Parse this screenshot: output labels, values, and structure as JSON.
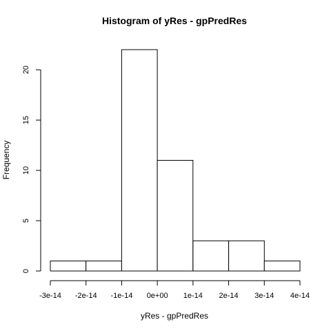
{
  "chart_data": {
    "type": "bar",
    "subtype": "histogram",
    "title": "Histogram of yRes - gpPredRes",
    "xlabel": "yRes - gpPredRes",
    "ylabel": "Frequency",
    "bins": [
      {
        "from": -3e-14,
        "to": -2e-14,
        "count": 1
      },
      {
        "from": -2e-14,
        "to": -1e-14,
        "count": 1
      },
      {
        "from": -1e-14,
        "to": 0,
        "count": 22
      },
      {
        "from": 0,
        "to": 1e-14,
        "count": 11
      },
      {
        "from": 1e-14,
        "to": 2e-14,
        "count": 3
      },
      {
        "from": 2e-14,
        "to": 3e-14,
        "count": 3
      },
      {
        "from": 3e-14,
        "to": 4e-14,
        "count": 1
      }
    ],
    "xlim": [
      -3e-14,
      4e-14
    ],
    "ylim": [
      0,
      22
    ],
    "x_ticks": [
      {
        "value": -3e-14,
        "label": "-3e-14"
      },
      {
        "value": -2e-14,
        "label": "-2e-14"
      },
      {
        "value": -1e-14,
        "label": "-1e-14"
      },
      {
        "value": 0,
        "label": "0e+00"
      },
      {
        "value": 1e-14,
        "label": "1e-14"
      },
      {
        "value": 2e-14,
        "label": "2e-14"
      },
      {
        "value": 3e-14,
        "label": "3e-14"
      },
      {
        "value": 4e-14,
        "label": "4e-14"
      }
    ],
    "y_ticks": [
      {
        "value": 0,
        "label": "0"
      },
      {
        "value": 5,
        "label": "5"
      },
      {
        "value": 10,
        "label": "10"
      },
      {
        "value": 15,
        "label": "15"
      },
      {
        "value": 20,
        "label": "20"
      }
    ],
    "grid": false,
    "legend": "none"
  }
}
